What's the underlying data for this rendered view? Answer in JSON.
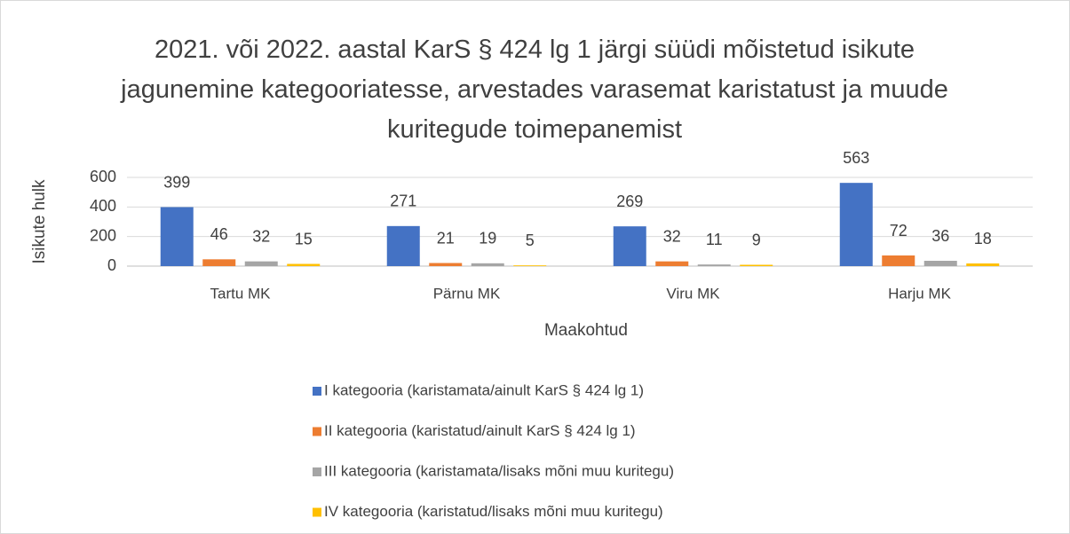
{
  "chart_data": {
    "type": "bar",
    "title": "2021. või 2022. aastal KarS § 424 lg 1 järgi süüdi mõistetud isikute jagunemine kategooriatesse, arvestades varasemat karistatust ja muude kuritegude toimepanemist",
    "x_label": "Maakohtud",
    "y_label": "Isikute hulk",
    "categories": [
      "Tartu MK",
      "Pärnu MK",
      "Viru MK",
      "Harju MK"
    ],
    "series": [
      {
        "name": "I kategooria (karistamata/ainult KarS § 424 lg 1)",
        "color": "#4472c4",
        "values": [
          399,
          271,
          269,
          563
        ]
      },
      {
        "name": "II kategooria (karistatud/ainult KarS § 424 lg 1)",
        "color": "#ed7d31",
        "values": [
          46,
          21,
          32,
          72
        ]
      },
      {
        "name": "III kategooria (karistamata/lisaks mõni muu kuritegu)",
        "color": "#a5a5a5",
        "values": [
          32,
          19,
          11,
          36
        ]
      },
      {
        "name": "IV kategooria (karistatud/lisaks mõni muu kuritegu)",
        "color": "#ffc000",
        "values": [
          15,
          5,
          9,
          18
        ]
      }
    ],
    "ylim": [
      0,
      600
    ],
    "yticks": [
      0,
      200,
      400,
      600
    ],
    "grid": true,
    "legend": "bottom"
  }
}
